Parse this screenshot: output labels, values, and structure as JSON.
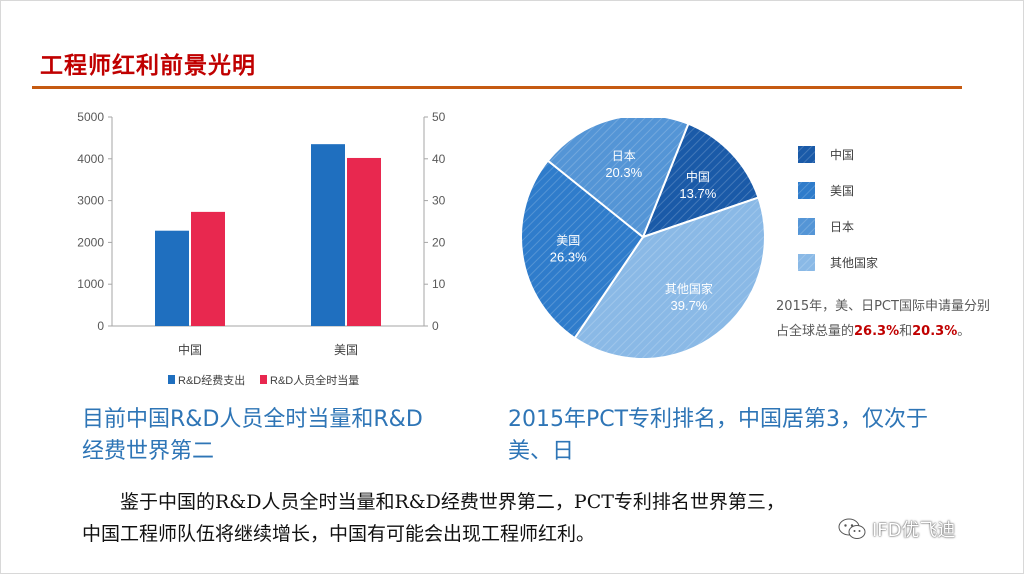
{
  "slide": {
    "title": "工程师红利前景光明",
    "caption_left": "目前中国R&D人员全时当量和R&D经费世界第二",
    "caption_right": "2015年PCT专利排名，中国居第3，仅次于美、日",
    "conclusion_line1": "鉴于中国的R&D人员全时当量和R&D经费世界第二，PCT专利排名世界第三，",
    "conclusion_line2": "中国工程师队伍将继续增长，中国有可能会出现工程师红利。",
    "pie_note_prefix": "2015年，美、日PCT国际申请量分别占全球总量的",
    "pie_note_us": "26.3%",
    "pie_note_mid": "和",
    "pie_note_jp": "20.3%",
    "pie_note_suffix": "。",
    "watermark": "IFD优飞迪"
  },
  "colors": {
    "title": "#c00000",
    "rule": "#c55a11",
    "caption": "#2e75b6",
    "bar_blue": "#1f6fbf",
    "bar_red": "#e8284f",
    "pie": [
      "#1a5aa8",
      "#2f7ccb",
      "#5495d6",
      "#8ab9e6"
    ],
    "highlight": "#c00000"
  },
  "chart_data": [
    {
      "type": "bar",
      "categories": [
        "中国",
        "美国"
      ],
      "series": [
        {
          "name": "R&D经费支出",
          "values": [
            2280,
            4350
          ],
          "axis": "left",
          "color": "#1f6fbf"
        },
        {
          "name": "R&D人员全时当量",
          "values": [
            27.3,
            40.2
          ],
          "axis": "right",
          "color": "#e8284f"
        }
      ],
      "y_left": {
        "min": 0,
        "max": 5000,
        "ticks": [
          0,
          1000,
          2000,
          3000,
          4000,
          5000
        ]
      },
      "y_right": {
        "min": 0,
        "max": 50,
        "ticks": [
          0,
          10,
          20,
          30,
          40,
          50
        ]
      },
      "legend": "bottom",
      "grid": false
    },
    {
      "type": "pie",
      "slices": [
        {
          "label": "中国",
          "value": 13.7,
          "display": "13.7%"
        },
        {
          "label": "其他国家",
          "value": 39.7,
          "display": "39.7%"
        },
        {
          "label": "美国",
          "value": 26.3,
          "display": "26.3%"
        },
        {
          "label": "日本",
          "value": 20.3,
          "display": "20.3%"
        }
      ],
      "legend_order": [
        "中国",
        "美国",
        "日本",
        "其他国家"
      ],
      "legend": "right"
    }
  ]
}
